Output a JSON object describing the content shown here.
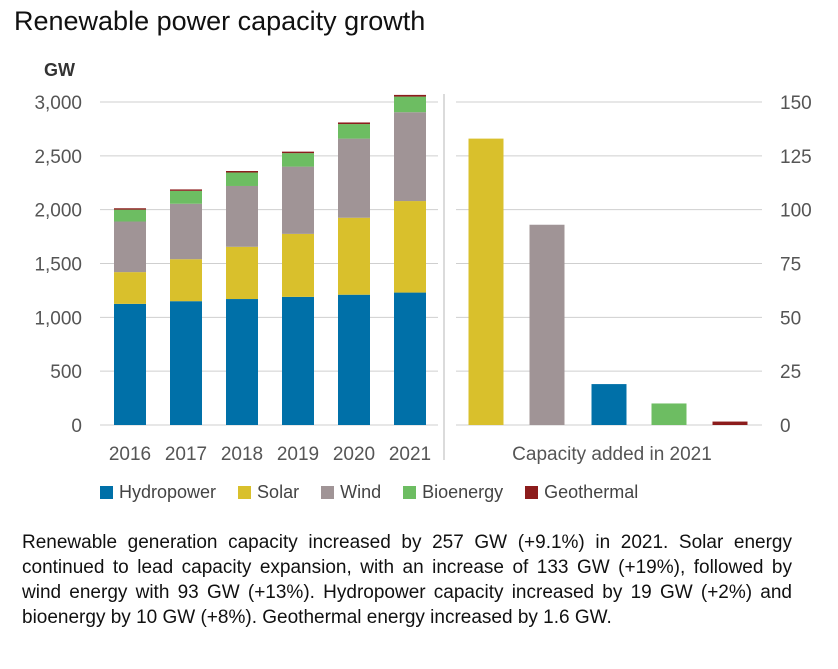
{
  "title": "Renewable power capacity growth",
  "colors": {
    "Hydropower": "#0070a8",
    "Solar": "#d9c02c",
    "Wind": "#a09496",
    "Bioenergy": "#6dbd62",
    "Geothermal": "#8c1c1c"
  },
  "chart_data": [
    {
      "type": "bar",
      "stacked": true,
      "ylabel": "GW",
      "ylim": [
        0,
        3000
      ],
      "yticks": [
        "0",
        "500",
        "1,000",
        "1,500",
        "2,000",
        "2,500",
        "3,000"
      ],
      "categories": [
        "2016",
        "2017",
        "2018",
        "2019",
        "2020",
        "2021"
      ],
      "series": [
        {
          "name": "Hydropower",
          "values": [
            1125,
            1150,
            1170,
            1190,
            1210,
            1230
          ]
        },
        {
          "name": "Solar",
          "values": [
            295,
            390,
            485,
            585,
            715,
            850
          ]
        },
        {
          "name": "Wind",
          "values": [
            470,
            515,
            565,
            625,
            735,
            825
          ]
        },
        {
          "name": "Bioenergy",
          "values": [
            110,
            120,
            125,
            125,
            135,
            145
          ]
        },
        {
          "name": "Geothermal",
          "values": [
            13,
            13,
            14,
            14,
            15,
            16
          ]
        }
      ]
    },
    {
      "type": "bar",
      "ylim": [
        0,
        150
      ],
      "yticks": [
        "0",
        "25",
        "50",
        "75",
        "100",
        "125",
        "150"
      ],
      "xlabel": "Capacity added in 2021",
      "categories": [
        "Solar",
        "Wind",
        "Hydropower",
        "Bioenergy",
        "Geothermal"
      ],
      "values": [
        133,
        93,
        19,
        10,
        1.6
      ]
    }
  ],
  "legend": [
    "Hydropower",
    "Solar",
    "Wind",
    "Bioenergy",
    "Geothermal"
  ],
  "caption": "Renewable generation capacity increased by 257 GW (+9.1%) in 2021. Solar energy continued to lead capacity expansion, with an increase of 133 GW (+19%), followed by wind energy with 93 GW (+13%). Hydropower capacity increased by 19 GW (+2%) and bioenergy by 10 GW (+8%). Geothermal energy increased by 1.6 GW."
}
